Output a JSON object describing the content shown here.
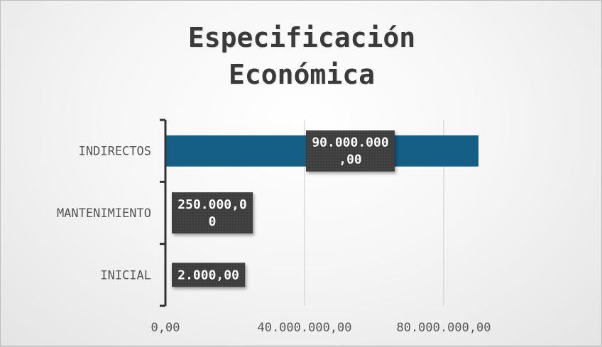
{
  "chart_data": {
    "type": "bar",
    "orientation": "horizontal",
    "title": "Especificación\nEconómica",
    "categories": [
      "INICIAL",
      "MANTENIMIENTO",
      "INDIRECTOS"
    ],
    "values": [
      2000,
      250000,
      90000000
    ],
    "data_labels": [
      "2.000,00",
      "250.000,0\n0",
      "90.000.000\n,00"
    ],
    "x_ticks": [
      0,
      40000000,
      80000000
    ],
    "x_tick_labels": [
      "0,00",
      "40.000.000,00",
      "80.000.000,00"
    ],
    "xlim": [
      0,
      80000000
    ],
    "grid": "vertical",
    "legend": "none",
    "colors": {
      "bar": "#155e86",
      "data_label_bg": "#3d3d3d",
      "axis": "#333333",
      "grid": "#c9c9c9",
      "text": "#555555"
    }
  }
}
